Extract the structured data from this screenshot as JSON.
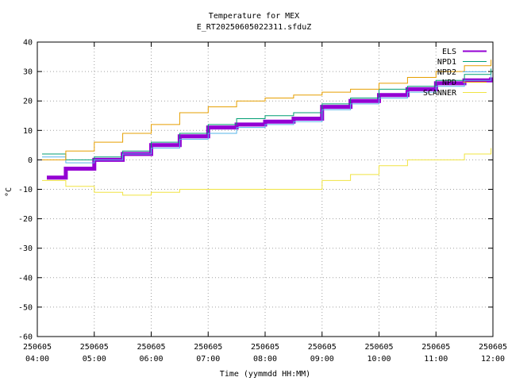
{
  "chart_data": {
    "type": "line",
    "title": "Temperature for MEX",
    "subtitle": "E_RT20250605022311.sfduZ",
    "xlabel": "Time (yymmdd HH:MM)",
    "ylabel": "°C",
    "ylim": [
      -60,
      40
    ],
    "yticks": [
      -60,
      -50,
      -40,
      -30,
      -20,
      -10,
      0,
      10,
      20,
      30,
      40
    ],
    "xlim": [
      "2025-06-05 04:00",
      "2025-06-05 12:00"
    ],
    "xticks": [
      {
        "date": "250605",
        "time": "04:00"
      },
      {
        "date": "250605",
        "time": "05:00"
      },
      {
        "date": "250605",
        "time": "06:00"
      },
      {
        "date": "250605",
        "time": "07:00"
      },
      {
        "date": "250605",
        "time": "08:00"
      },
      {
        "date": "250605",
        "time": "09:00"
      },
      {
        "date": "250605",
        "time": "10:00"
      },
      {
        "date": "250605",
        "time": "11:00"
      },
      {
        "date": "250605",
        "time": "12:00"
      }
    ],
    "grid": true,
    "legend_position": "top-right",
    "series": [
      {
        "name": "ELS",
        "color": "#9400d3",
        "width": 5,
        "x": [
          "2025-06-05 04:10",
          "2025-06-05 04:30",
          "2025-06-05 05:00",
          "2025-06-05 05:30",
          "2025-06-05 06:00",
          "2025-06-05 06:30",
          "2025-06-05 07:00",
          "2025-06-05 07:30",
          "2025-06-05 08:00",
          "2025-06-05 08:30",
          "2025-06-05 09:00",
          "2025-06-05 09:30",
          "2025-06-05 10:00",
          "2025-06-05 10:30",
          "2025-06-05 11:00",
          "2025-06-05 11:30",
          "2025-06-05 11:58"
        ],
        "y": [
          -6,
          -3,
          0,
          2,
          5,
          8,
          11,
          12,
          13,
          14,
          18,
          20,
          22,
          24,
          26,
          27,
          28
        ]
      },
      {
        "name": "NPD1",
        "color": "#009e73",
        "width": 1,
        "x": [
          "2025-06-05 04:05",
          "2025-06-05 04:30",
          "2025-06-05 05:00",
          "2025-06-05 05:30",
          "2025-06-05 06:00",
          "2025-06-05 06:30",
          "2025-06-05 07:00",
          "2025-06-05 07:30",
          "2025-06-05 08:00",
          "2025-06-05 08:30",
          "2025-06-05 09:00",
          "2025-06-05 09:30",
          "2025-06-05 10:00",
          "2025-06-05 10:30",
          "2025-06-05 11:00",
          "2025-06-05 11:30",
          "2025-06-05 11:58"
        ],
        "y": [
          2,
          0,
          1,
          3,
          6,
          9,
          12,
          14,
          15,
          16,
          19,
          21,
          24,
          25,
          27,
          29,
          31
        ]
      },
      {
        "name": "NPD2",
        "color": "#56b4e9",
        "width": 1,
        "x": [
          "2025-06-05 04:05",
          "2025-06-05 04:30",
          "2025-06-05 05:00",
          "2025-06-05 05:30",
          "2025-06-05 06:00",
          "2025-06-05 06:30",
          "2025-06-05 07:00",
          "2025-06-05 07:30",
          "2025-06-05 08:00",
          "2025-06-05 08:30",
          "2025-06-05 09:00",
          "2025-06-05 09:30",
          "2025-06-05 10:00",
          "2025-06-05 10:30",
          "2025-06-05 11:00",
          "2025-06-05 11:30",
          "2025-06-05 11:58"
        ],
        "y": [
          1,
          -1,
          0,
          2,
          4,
          7,
          9,
          11,
          12,
          13,
          17,
          19,
          21,
          23,
          25,
          27,
          29
        ]
      },
      {
        "name": "NPD",
        "color": "#e69f00",
        "width": 1,
        "x": [
          "2025-06-05 04:05",
          "2025-06-05 04:30",
          "2025-06-05 05:00",
          "2025-06-05 05:30",
          "2025-06-05 06:00",
          "2025-06-05 06:30",
          "2025-06-05 07:00",
          "2025-06-05 07:30",
          "2025-06-05 08:00",
          "2025-06-05 08:30",
          "2025-06-05 09:00",
          "2025-06-05 09:30",
          "2025-06-05 10:00",
          "2025-06-05 10:30",
          "2025-06-05 11:00",
          "2025-06-05 11:30",
          "2025-06-05 11:58"
        ],
        "y": [
          0,
          3,
          6,
          9,
          12,
          16,
          18,
          20,
          21,
          22,
          23,
          24,
          26,
          28,
          30,
          32,
          34
        ]
      },
      {
        "name": "SCANNER",
        "color": "#f0e442",
        "width": 1,
        "x": [
          "2025-06-05 04:05",
          "2025-06-05 04:30",
          "2025-06-05 05:00",
          "2025-06-05 05:30",
          "2025-06-05 06:00",
          "2025-06-05 06:30",
          "2025-06-05 07:00",
          "2025-06-05 07:30",
          "2025-06-05 08:00",
          "2025-06-05 08:30",
          "2025-06-05 09:00",
          "2025-06-05 09:30",
          "2025-06-05 10:00",
          "2025-06-05 10:30",
          "2025-06-05 11:00",
          "2025-06-05 11:30",
          "2025-06-05 11:58"
        ],
        "y": [
          -7,
          -9,
          -11,
          -12,
          -11,
          -10,
          -10,
          -10,
          -10,
          -10,
          -7,
          -5,
          -2,
          0,
          0,
          2,
          4
        ]
      }
    ]
  }
}
